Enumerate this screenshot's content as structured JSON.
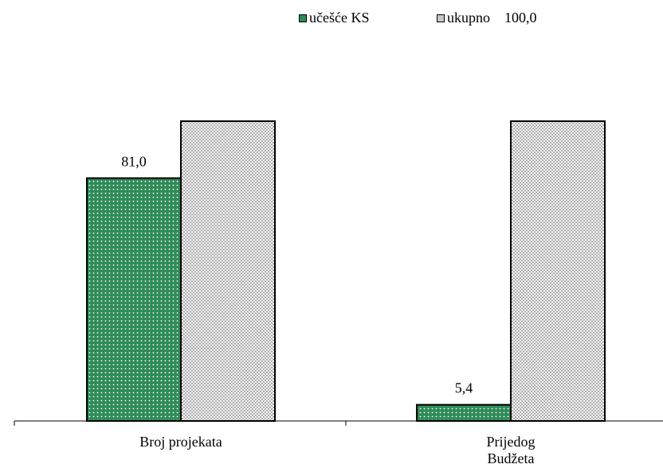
{
  "chart_data": {
    "type": "bar",
    "categories": [
      [
        "Broj projekata"
      ],
      [
        "Prijedog",
        "Budžeta"
      ]
    ],
    "series": [
      {
        "name": "učešće KS",
        "values": [
          81.0,
          5.4
        ],
        "labels": [
          "81,0",
          "5,4"
        ],
        "color": "#2e8b57",
        "pattern": "dots"
      },
      {
        "name": "ukupno",
        "values": [
          100.0,
          100.0
        ],
        "labels": [
          "100,0",
          null
        ],
        "color": "#c8c8c8",
        "pattern": "checker"
      }
    ],
    "ylim": [
      0,
      100
    ],
    "grid": false,
    "legend": "top",
    "xlabel": "",
    "ylabel": ""
  }
}
